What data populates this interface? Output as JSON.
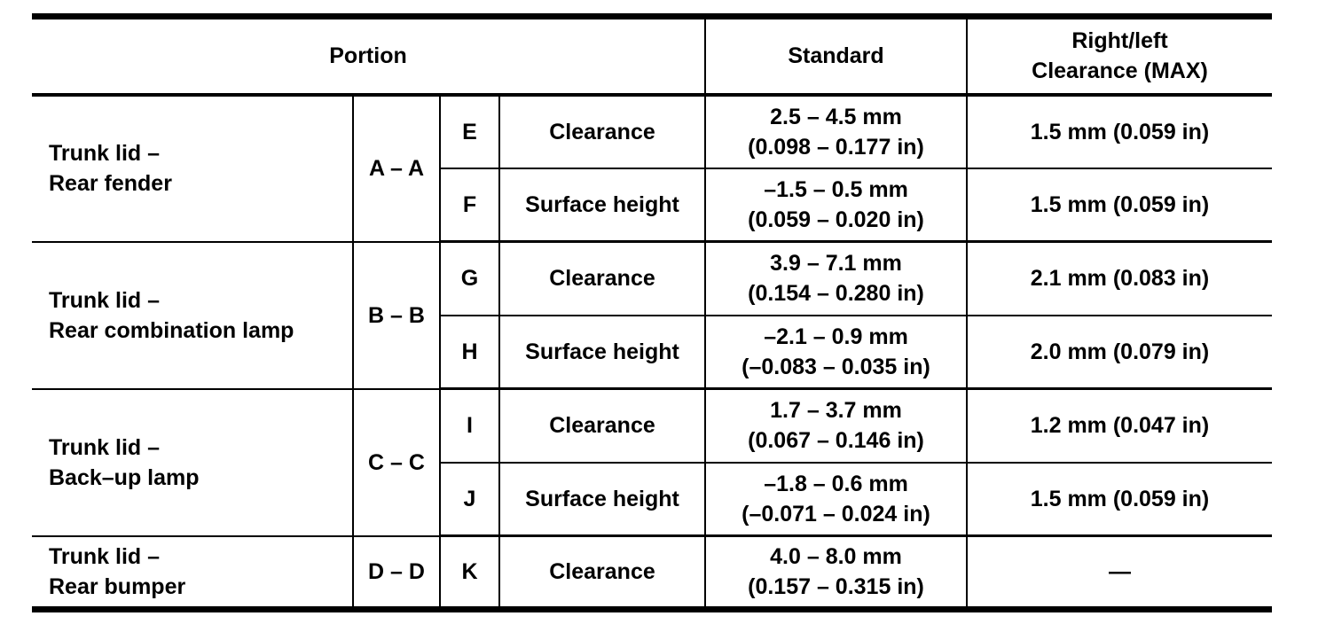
{
  "colors": {
    "background": "#ffffff",
    "text": "#000000",
    "border": "#000000"
  },
  "table": {
    "header": {
      "portion": "Portion",
      "standard": "Standard",
      "right_left": [
        "Right/left",
        "Clearance (MAX)"
      ]
    },
    "groups": [
      {
        "portion": [
          "Trunk lid –",
          "Rear fender"
        ],
        "section": "A – A",
        "rows": [
          {
            "point": "E",
            "measure": "Clearance",
            "standard": [
              "2.5 – 4.5 mm",
              "(0.098 – 0.177 in)"
            ],
            "max": "1.5 mm (0.059 in)"
          },
          {
            "point": "F",
            "measure": "Surface height",
            "standard": [
              "–1.5 – 0.5 mm",
              "(0.059 – 0.020 in)"
            ],
            "max": "1.5 mm (0.059 in)"
          }
        ]
      },
      {
        "portion": [
          "Trunk lid –",
          "Rear combination lamp"
        ],
        "section": "B – B",
        "rows": [
          {
            "point": "G",
            "measure": "Clearance",
            "standard": [
              "3.9 – 7.1 mm",
              "(0.154 – 0.280 in)"
            ],
            "max": "2.1 mm (0.083 in)"
          },
          {
            "point": "H",
            "measure": "Surface height",
            "standard": [
              "–2.1 – 0.9 mm",
              "(–0.083 – 0.035 in)"
            ],
            "max": "2.0 mm (0.079 in)"
          }
        ]
      },
      {
        "portion": [
          "Trunk lid –",
          "Back–up lamp"
        ],
        "section": "C – C",
        "rows": [
          {
            "point": "I",
            "measure": "Clearance",
            "standard": [
              "1.7 – 3.7 mm",
              "(0.067 – 0.146 in)"
            ],
            "max": "1.2 mm (0.047 in)"
          },
          {
            "point": "J",
            "measure": "Surface height",
            "standard": [
              "–1.8 – 0.6 mm",
              "(–0.071 – 0.024 in)"
            ],
            "max": "1.5 mm (0.059 in)"
          }
        ]
      },
      {
        "portion": [
          "Trunk lid –",
          "Rear bumper"
        ],
        "section": "D – D",
        "rows": [
          {
            "point": "K",
            "measure": "Clearance",
            "standard": [
              "4.0 – 8.0 mm",
              "(0.157 – 0.315 in)"
            ],
            "max": "—"
          }
        ]
      }
    ]
  }
}
